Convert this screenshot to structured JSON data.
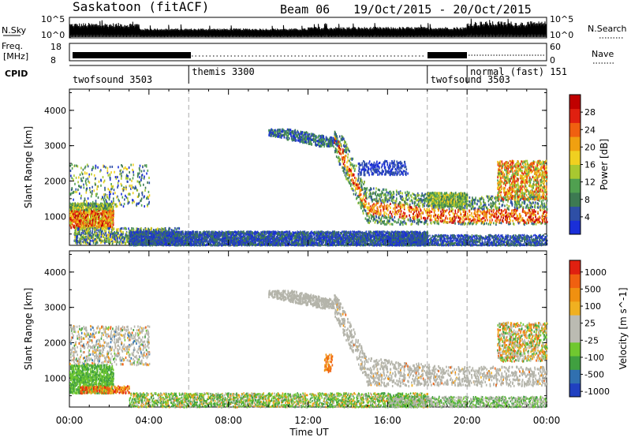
{
  "header": {
    "title": "Saskatoon (fitACF)",
    "beam": "Beam 06",
    "date_range": "19/Oct/2015 - 20/Oct/2015"
  },
  "panels": {
    "nsky_label": "N.Sky",
    "nsky_ticks": [
      "10^5",
      "10^0"
    ],
    "nsearch_label": "N.Search",
    "nsearch_ticks": [
      "10^5",
      "10^0"
    ],
    "freq_label": "Freq.",
    "freq_unit": "[MHz]",
    "freq_ticks": [
      "18",
      "8"
    ],
    "nave_label": "Nave",
    "nave_ticks": [
      "60",
      "0"
    ],
    "cpid_label": "CPID"
  },
  "cpid_segments": [
    {
      "name": "twofsound 3503",
      "start_hour": 0
    },
    {
      "name": "themis 3300",
      "start_hour": 6
    },
    {
      "name": "twofsound 3503",
      "start_hour": 18
    },
    {
      "name": "normal (fast) 151",
      "start_hour": 20
    }
  ],
  "x_axis": {
    "label": "Time UT",
    "ticks": [
      "00:00",
      "04:00",
      "08:00",
      "12:00",
      "16:00",
      "20:00",
      "00:00"
    ]
  },
  "chart_data": [
    {
      "type": "heatmap",
      "name": "power",
      "ylabel": "Slant Range [km]",
      "yticks": [
        1000,
        2000,
        3000,
        4000
      ],
      "ylim": [
        180,
        4600
      ],
      "xlim_hours": [
        0,
        24
      ],
      "colorbar_label": "Power [dB]",
      "colorbar_ticks": [
        "4",
        "8",
        "12",
        "16",
        "20",
        "24",
        "28"
      ],
      "colorscale": [
        "#1a2fd8",
        "#2e4fa6",
        "#3d7a52",
        "#50a050",
        "#a8c830",
        "#f0d020",
        "#f0a010",
        "#f06010",
        "#e02010",
        "#c00000"
      ],
      "colorbar_range": [
        0,
        32
      ],
      "region_min_values": [
        4,
        8,
        18,
        24
      ]
    },
    {
      "type": "heatmap",
      "name": "velocity",
      "ylabel": "Slant Range [km]",
      "yticks": [
        1000,
        2000,
        3000,
        4000
      ],
      "ylim": [
        180,
        4600
      ],
      "xlim_hours": [
        0,
        24
      ],
      "colorbar_label": "Velocity [m s^-1]",
      "colorbar_ticks": [
        "1000",
        "500",
        "100",
        "25",
        "-25",
        "-100",
        "-500",
        "-1000"
      ],
      "colorscale": [
        "#2040c0",
        "#3070b0",
        "#40a040",
        "#70c830",
        "#bbbbb2",
        "#bbbbb2",
        "#f0b020",
        "#f09010",
        "#f06010",
        "#e02010"
      ],
      "ground_scatter_color": "#b4b4aa"
    }
  ]
}
